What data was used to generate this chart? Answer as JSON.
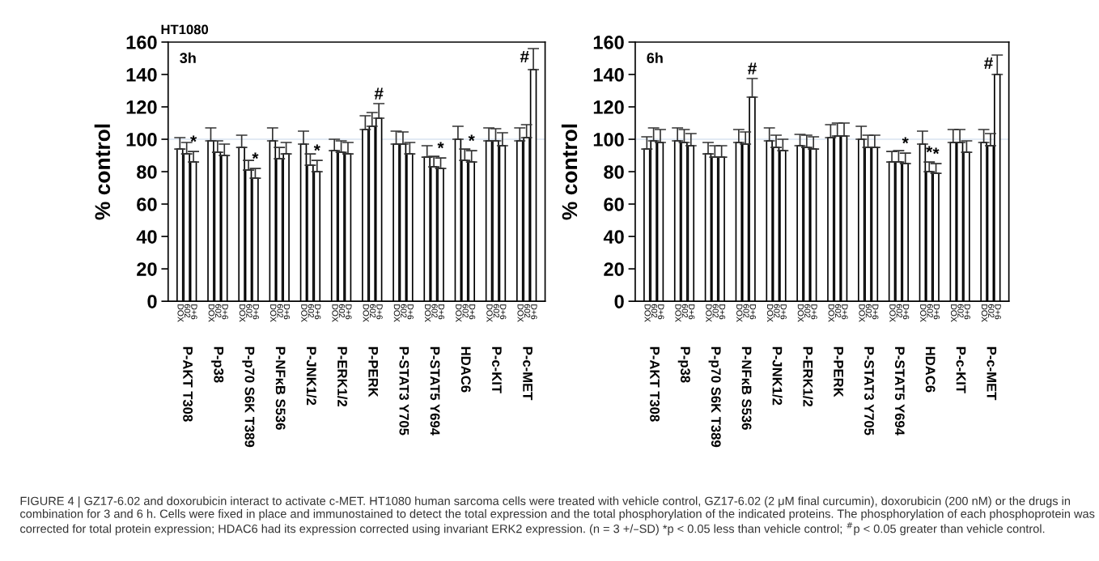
{
  "chart_data": [
    {
      "type": "bar",
      "title": "HT1080",
      "ylabel": "% control",
      "categories": [
        "P-AKT T308",
        "P-p38",
        "P-p70 S6K T389",
        "P-NFκB S536",
        "P-JNK1/2",
        "P-ERK1/2",
        "P-PERK",
        "P-STAT3 Y705",
        "P-STAT5 Y694",
        "HDAC6",
        "P-c-KIT",
        "P-c-MET"
      ],
      "ylim": [
        0,
        160
      ],
      "yticks": [
        0,
        20,
        40,
        60,
        80,
        100,
        120,
        140,
        160
      ],
      "ref_lines": [
        {
          "axis": "y",
          "value": 100,
          "color": "#c5d5ea"
        }
      ],
      "annotations": [
        "3h",
        "FIGURE 4 | GZ17-6.02 and doxorubicin interact to activate c-MET. HT1080 human sarcoma cells were treated with vehicle control, GZ17-6.02 (2 μM final curcumin), doxorubicin (200 nM) or the drugs in combination for 3 and 6 h. Cells were fixed in place and immunostained to detect the total expression and the total phosphorylation of the indicated proteins. The phosphorylation of each phosphoprotein was corrected for total protein expression; HDAC6 had its expression corrected using invariant ERK2 expression. (n = 3 +/–SD) *p < 0.05 less than vehicle control; $^{#}$p < 0.05 greater than vehicle control."
      ],
      "series": [
        {
          "name": "DOX",
          "color": "#ffffff",
          "values": [
            94,
            99,
            95,
            99,
            97,
            93,
            106,
            97,
            89,
            100,
            99,
            99
          ],
          "errors": [
            [
              94,
              101
            ],
            [
              99,
              107
            ],
            [
              95,
              102.5
            ],
            [
              99,
              107
            ],
            [
              97,
              105
            ],
            [
              93,
              100
            ],
            [
              106,
              114.5
            ],
            [
              97,
              105
            ],
            [
              89,
              96
            ],
            [
              100,
              108
            ],
            [
              99,
              107
            ],
            [
              99,
              107
            ]
          ],
          "value_labels": [
            null,
            null,
            null,
            null,
            null,
            null,
            null,
            null,
            null,
            null,
            null,
            null
          ]
        },
        {
          "name": "602",
          "color": "#ffffff",
          "values": [
            91,
            92,
            81,
            88,
            84,
            92,
            108,
            97,
            83,
            87,
            99,
            101
          ],
          "errors": [
            [
              91,
              98
            ],
            [
              92,
              99
            ],
            [
              81,
              87
            ],
            [
              88,
              95
            ],
            [
              84,
              91
            ],
            [
              92,
              99
            ],
            [
              108,
              116.5
            ],
            [
              97,
              104.5
            ],
            [
              83,
              89.5
            ],
            [
              87,
              94
            ],
            [
              99,
              106.5
            ],
            [
              101,
              109
            ]
          ],
          "value_labels": [
            null,
            null,
            null,
            null,
            null,
            null,
            null,
            null,
            null,
            null,
            null,
            null
          ]
        },
        {
          "name": "D+6",
          "color": "#ffffff",
          "values": [
            86,
            90,
            76,
            91,
            80,
            91,
            113,
            91,
            82,
            86,
            96,
            143
          ],
          "errors": [
            [
              86,
              92.5
            ],
            [
              90,
              97
            ],
            [
              76,
              82
            ],
            [
              91,
              98
            ],
            [
              80,
              87
            ],
            [
              91,
              98
            ],
            [
              113,
              122
            ],
            [
              91,
              98
            ],
            [
              82,
              88.5
            ],
            [
              86,
              93
            ],
            [
              96,
              104
            ],
            [
              143,
              156
            ]
          ],
          "value_labels": [
            "*",
            null,
            "*",
            null,
            "*",
            null,
            "#",
            null,
            "*",
            "*",
            null,
            "#"
          ]
        }
      ]
    },
    {
      "type": "bar",
      "ylabel": "% control",
      "categories": [
        "P-AKT T308",
        "P-p38",
        "P-p70 S6K T389",
        "P-NFκB S536",
        "P-JNK1/2",
        "P-ERK1/2",
        "P-PERK",
        "P-STAT3 Y705",
        "P-STAT5 Y694",
        "HDAC6",
        "P-c-KIT",
        "P-c-MET"
      ],
      "ylim": [
        0,
        160
      ],
      "yticks": [
        0,
        20,
        40,
        60,
        80,
        100,
        120,
        140,
        160
      ],
      "ref_lines": [
        {
          "axis": "y",
          "value": 100,
          "color": "#c5d5ea"
        }
      ],
      "annotations": [
        "6h"
      ],
      "series": [
        {
          "name": "DOX",
          "color": "#ffffff",
          "values": [
            94,
            99,
            91,
            98,
            99,
            96,
            101,
            100,
            86,
            97,
            98,
            98
          ],
          "errors": [
            [
              94,
              101.5
            ],
            [
              99,
              107
            ],
            [
              91,
              98
            ],
            [
              98,
              106
            ],
            [
              99,
              107
            ],
            [
              96,
              103
            ],
            [
              101,
              109
            ],
            [
              100,
              108
            ],
            [
              86,
              92.5
            ],
            [
              97,
              105
            ],
            [
              98,
              106
            ],
            [
              98,
              106
            ]
          ],
          "value_labels": [
            null,
            null,
            null,
            null,
            null,
            null,
            null,
            null,
            null,
            null,
            null,
            null
          ]
        },
        {
          "name": "602",
          "color": "#ffffff",
          "values": [
            99,
            98,
            89,
            97,
            95,
            95,
            102,
            95,
            86,
            80,
            98,
            96
          ],
          "errors": [
            [
              99,
              107
            ],
            [
              98,
              106
            ],
            [
              89,
              96
            ],
            [
              97,
              104.5
            ],
            [
              95,
              102.5
            ],
            [
              95,
              102.5
            ],
            [
              102,
              110
            ],
            [
              95,
              102.5
            ],
            [
              86,
              93
            ],
            [
              80,
              86
            ],
            [
              98,
              106
            ],
            [
              96,
              103.5
            ]
          ],
          "value_labels": [
            null,
            null,
            null,
            null,
            null,
            null,
            null,
            null,
            null,
            "*",
            null,
            null
          ]
        },
        {
          "name": "D+6",
          "color": "#ffffff",
          "values": [
            98,
            96,
            89,
            126,
            93,
            94,
            102,
            95,
            85,
            79,
            92,
            140
          ],
          "errors": [
            [
              98,
              106
            ],
            [
              96,
              103.5
            ],
            [
              89,
              96
            ],
            [
              126,
              137.5
            ],
            [
              93,
              100
            ],
            [
              94,
              101.5
            ],
            [
              102,
              110
            ],
            [
              95,
              102.5
            ],
            [
              85,
              91.5
            ],
            [
              79,
              85
            ],
            [
              92,
              99
            ],
            [
              140,
              152
            ]
          ],
          "value_labels": [
            null,
            null,
            null,
            "#",
            null,
            null,
            null,
            null,
            "*",
            "*",
            null,
            "#"
          ]
        }
      ]
    }
  ]
}
